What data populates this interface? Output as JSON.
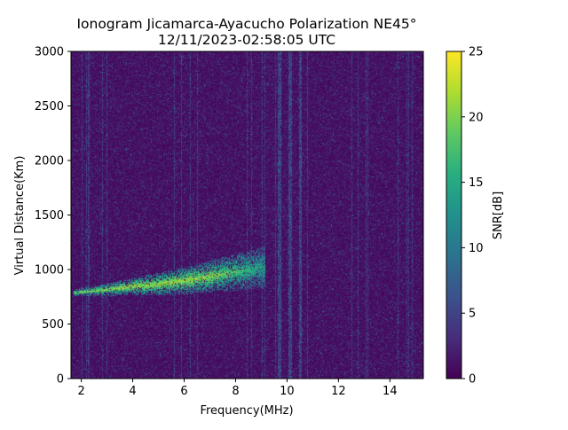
{
  "chart_data": {
    "type": "heatmap",
    "title": "Ionogram Jicamarca-Ayacucho Polarization NE45°",
    "subtitle": "12/11/2023-02:58:05 UTC",
    "xlabel": "Frequency(MHz)",
    "ylabel": "Virtual Distance(Km)",
    "xlim": [
      1.6,
      15.3
    ],
    "ylim": [
      0,
      3000
    ],
    "xticks": [
      2,
      4,
      6,
      8,
      10,
      12,
      14
    ],
    "yticks": [
      0,
      500,
      1000,
      1500,
      2000,
      2500,
      3000
    ],
    "grid": false,
    "colorbar": {
      "label": "SNR[dB]",
      "range": [
        0,
        25
      ],
      "ticks": [
        0,
        5,
        10,
        15,
        20,
        25
      ],
      "colormap": "viridis"
    },
    "echo_trace": {
      "description_points": [
        {
          "freq": 1.7,
          "distance": 790,
          "snr": 22
        },
        {
          "freq": 3.0,
          "distance": 820,
          "snr": 23
        },
        {
          "freq": 4.0,
          "distance": 850,
          "snr": 24
        },
        {
          "freq": 5.0,
          "distance": 870,
          "snr": 24
        },
        {
          "freq": 6.0,
          "distance": 900,
          "snr": 24
        },
        {
          "freq": 7.0,
          "distance": 940,
          "snr": 23
        },
        {
          "freq": 8.0,
          "distance": 980,
          "snr": 20
        },
        {
          "freq": 9.0,
          "distance": 1020,
          "snr": 16
        }
      ]
    },
    "interference_bands_mhz": [
      9.7,
      10.1,
      10.5
    ]
  }
}
